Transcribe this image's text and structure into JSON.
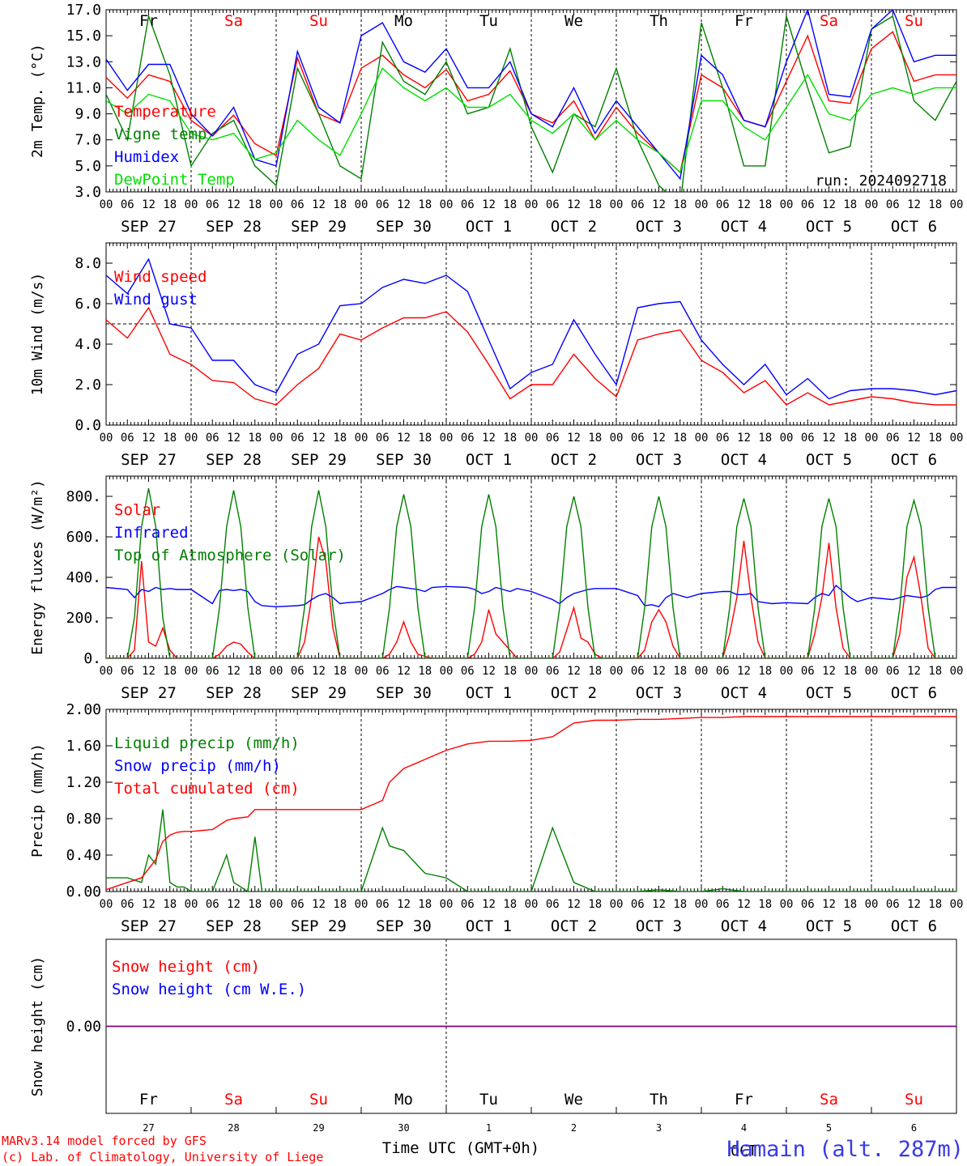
{
  "colors": {
    "red": "#ff0000",
    "blue": "#0000ff",
    "green": "#008000",
    "light_green": "#00e000",
    "purple": "#800080",
    "black": "#000000",
    "station_blue": "#3a3ae6"
  },
  "x_axis": {
    "hour_ticks": [
      "00",
      "06",
      "12",
      "18"
    ],
    "final_hour": "00",
    "dates": [
      "SEP 27",
      "SEP 28",
      "SEP 29",
      "SEP 30",
      "OCT  1",
      "OCT  2",
      "OCT  3",
      "OCT  4",
      "OCT  5",
      "OCT  6"
    ],
    "weekdays": [
      "Fr",
      "Sa",
      "Su",
      "Mo",
      "Tu",
      "We",
      "Th",
      "Fr",
      "Sa",
      "Su"
    ],
    "weekend_flags": [
      false,
      true,
      true,
      false,
      false,
      false,
      false,
      false,
      true,
      true
    ],
    "day_numbers": [
      "27",
      "28",
      "29",
      "30",
      "1",
      "2",
      "3",
      "4",
      "5",
      "6"
    ],
    "month_label": "OCT",
    "title": "Time UTC (GMT+0h)"
  },
  "footer": {
    "model_line": "MARv3.14 model forced by GFS",
    "credit_line": "(c) Lab. of Climatology, University of Liege",
    "station": "Hamain (alt. 287m)"
  },
  "chart_data": [
    {
      "id": "temperature",
      "type": "line",
      "ylabel": "2m Temp. (°C)",
      "ylim": [
        3.0,
        17.0
      ],
      "yticks": [
        "3.0",
        "5.0",
        "7.0",
        "9.0",
        "11.0",
        "13.0",
        "15.0",
        "17.0"
      ],
      "ytick_values": [
        3,
        5,
        7,
        9,
        11,
        13,
        15,
        17
      ],
      "annotation": "run: 2024092718",
      "show_weekdays": true,
      "x_hours": [
        0,
        6,
        12,
        18,
        24,
        30,
        36,
        42,
        48,
        54,
        60,
        66,
        72,
        78,
        84,
        90,
        96,
        102,
        108,
        114,
        120,
        126,
        132,
        138,
        144,
        150,
        156,
        162,
        168,
        174,
        180,
        186,
        192,
        198,
        204,
        210,
        216,
        222,
        228,
        234,
        240
      ],
      "series": [
        {
          "name": "Temperature",
          "color": "#ff0000",
          "values": [
            11.8,
            10.2,
            12.0,
            11.5,
            8.5,
            7.3,
            8.9,
            6.7,
            5.8,
            13.3,
            9.0,
            8.3,
            12.5,
            13.5,
            12.0,
            11.0,
            12.4,
            10.0,
            10.5,
            12.3,
            9.0,
            8.3,
            10.0,
            7.0,
            9.5,
            7.5,
            6.0,
            4.5,
            12.0,
            11.0,
            8.5,
            8.0,
            11.5,
            15.0,
            10.0,
            9.8,
            14.0,
            15.3,
            11.5,
            12.0,
            12.0
          ]
        },
        {
          "name": "Vigne temp",
          "color": "#008000",
          "values": [
            10.5,
            7.0,
            16.5,
            12.0,
            5.0,
            7.5,
            8.5,
            5.0,
            3.5,
            12.5,
            9.0,
            5.0,
            4.0,
            14.5,
            11.5,
            10.5,
            13.0,
            9.0,
            9.5,
            14.0,
            8.0,
            4.5,
            9.0,
            8.0,
            12.5,
            7.0,
            3.5,
            2.0,
            16.0,
            11.0,
            5.0,
            5.0,
            16.5,
            11.0,
            6.0,
            6.5,
            15.5,
            16.5,
            10.0,
            8.5,
            11.5
          ]
        },
        {
          "name": "Humidex",
          "color": "#0000ff",
          "values": [
            13.2,
            10.8,
            12.8,
            12.8,
            9.0,
            7.3,
            9.5,
            5.5,
            5.0,
            13.8,
            9.5,
            8.3,
            15.0,
            16.0,
            13.0,
            12.2,
            14.0,
            11.0,
            11.0,
            13.0,
            9.0,
            8.0,
            11.0,
            7.5,
            10.0,
            8.0,
            6.0,
            4.0,
            13.5,
            12.0,
            8.5,
            8.0,
            13.0,
            17.0,
            10.5,
            10.3,
            15.5,
            17.0,
            13.0,
            13.5,
            13.5
          ]
        },
        {
          "name": "DewPoint Temp",
          "color": "#00e000",
          "values": [
            10.0,
            9.0,
            10.5,
            10.0,
            7.5,
            7.0,
            7.5,
            5.5,
            6.0,
            8.5,
            7.0,
            5.8,
            9.0,
            12.5,
            11.0,
            10.0,
            11.0,
            9.5,
            9.5,
            10.5,
            8.5,
            7.5,
            9.0,
            7.0,
            8.5,
            7.0,
            6.0,
            4.5,
            10.0,
            10.0,
            8.0,
            7.0,
            9.5,
            12.0,
            9.0,
            8.5,
            10.5,
            11.0,
            10.5,
            11.0,
            11.0
          ]
        }
      ]
    },
    {
      "id": "wind",
      "type": "line",
      "ylabel": "10m Wind (m/s)",
      "ylim": [
        0.0,
        9.0
      ],
      "yticks": [
        "0.0",
        "2.0",
        "4.0",
        "6.0",
        "8.0"
      ],
      "ytick_values": [
        0,
        2,
        4,
        6,
        8
      ],
      "reference_line": 5.0,
      "show_weekdays": false,
      "x_hours": [
        0,
        6,
        12,
        18,
        24,
        30,
        36,
        42,
        48,
        54,
        60,
        66,
        72,
        78,
        84,
        90,
        96,
        102,
        108,
        114,
        120,
        126,
        132,
        138,
        144,
        150,
        156,
        162,
        168,
        174,
        180,
        186,
        192,
        198,
        204,
        210,
        216,
        222,
        228,
        234,
        240
      ],
      "series": [
        {
          "name": "Wind speed",
          "color": "#ff0000",
          "values": [
            5.2,
            4.3,
            5.8,
            3.5,
            3.0,
            2.2,
            2.1,
            1.3,
            1.0,
            2.0,
            2.8,
            4.5,
            4.2,
            4.8,
            5.3,
            5.3,
            5.6,
            4.6,
            3.0,
            1.3,
            2.0,
            2.0,
            3.5,
            2.3,
            1.4,
            4.2,
            4.5,
            4.7,
            3.2,
            2.6,
            1.6,
            2.2,
            1.0,
            1.6,
            1.0,
            1.2,
            1.4,
            1.3,
            1.1,
            1.0,
            1.0
          ]
        },
        {
          "name": "Wind gust",
          "color": "#0000ff",
          "values": [
            7.4,
            6.5,
            8.2,
            5.0,
            4.8,
            3.2,
            3.2,
            2.0,
            1.6,
            3.5,
            4.0,
            5.9,
            6.0,
            6.8,
            7.2,
            7.0,
            7.4,
            6.6,
            4.2,
            1.8,
            2.6,
            3.0,
            5.2,
            3.5,
            2.0,
            5.8,
            6.0,
            6.1,
            4.2,
            3.0,
            2.0,
            3.0,
            1.5,
            2.3,
            1.3,
            1.7,
            1.8,
            1.8,
            1.7,
            1.5,
            1.7
          ]
        }
      ]
    },
    {
      "id": "energy",
      "type": "line",
      "ylabel": "Energy fluxes (W/m²)",
      "ylim": [
        0,
        900
      ],
      "yticks": [
        "0.",
        "200.",
        "400.",
        "600.",
        "800."
      ],
      "ytick_values": [
        0,
        200,
        400,
        600,
        800
      ],
      "show_weekdays": false,
      "x_hours": [
        0,
        6,
        8,
        10,
        12,
        14,
        16,
        18,
        20,
        24,
        30,
        32,
        34,
        36,
        38,
        40,
        42,
        44,
        48,
        54,
        56,
        58,
        60,
        62,
        64,
        66,
        68,
        72,
        78,
        80,
        82,
        84,
        86,
        88,
        90,
        92,
        96,
        102,
        104,
        106,
        108,
        110,
        112,
        114,
        116,
        120,
        126,
        128,
        130,
        132,
        134,
        136,
        138,
        140,
        144,
        150,
        152,
        154,
        156,
        158,
        160,
        162,
        164,
        168,
        174,
        176,
        178,
        180,
        182,
        184,
        186,
        188,
        192,
        198,
        200,
        202,
        204,
        206,
        208,
        210,
        212,
        216,
        222,
        224,
        226,
        228,
        230,
        232,
        234,
        236,
        240
      ],
      "series": [
        {
          "name": "Solar",
          "color": "#ff0000",
          "values": [
            0,
            0,
            40,
            480,
            80,
            60,
            150,
            40,
            0,
            0,
            0,
            20,
            60,
            80,
            70,
            30,
            0,
            0,
            0,
            0,
            80,
            300,
            600,
            480,
            150,
            0,
            0,
            0,
            0,
            20,
            80,
            180,
            80,
            20,
            10,
            0,
            0,
            0,
            20,
            80,
            240,
            120,
            80,
            40,
            0,
            0,
            0,
            30,
            140,
            250,
            100,
            80,
            20,
            0,
            0,
            0,
            40,
            180,
            240,
            180,
            60,
            0,
            0,
            0,
            0,
            120,
            300,
            580,
            300,
            80,
            0,
            0,
            0,
            0,
            120,
            300,
            570,
            250,
            50,
            0,
            0,
            0,
            0,
            120,
            400,
            500,
            300,
            50,
            0,
            0,
            0
          ]
        },
        {
          "name": "Infrared",
          "color": "#0000ff",
          "values": [
            350,
            340,
            300,
            340,
            330,
            350,
            340,
            345,
            340,
            340,
            270,
            335,
            340,
            335,
            340,
            330,
            280,
            260,
            255,
            260,
            265,
            290,
            310,
            320,
            300,
            270,
            275,
            280,
            320,
            340,
            355,
            350,
            345,
            340,
            330,
            350,
            355,
            350,
            340,
            320,
            330,
            350,
            340,
            330,
            345,
            330,
            290,
            270,
            300,
            320,
            330,
            340,
            345,
            345,
            345,
            310,
            260,
            265,
            255,
            300,
            320,
            310,
            300,
            320,
            330,
            330,
            315,
            315,
            320,
            280,
            275,
            270,
            275,
            270,
            300,
            320,
            310,
            360,
            330,
            300,
            280,
            300,
            290,
            300,
            310,
            305,
            300,
            310,
            340,
            350,
            350
          ]
        },
        {
          "name": "Top of Atmosphere (Solar)",
          "color": "#008000",
          "values": [
            0,
            0,
            200,
            650,
            840,
            650,
            200,
            0,
            0,
            0,
            0,
            250,
            650,
            830,
            650,
            250,
            0,
            0,
            0,
            0,
            250,
            650,
            830,
            650,
            250,
            0,
            0,
            0,
            0,
            250,
            650,
            810,
            650,
            250,
            0,
            0,
            0,
            0,
            250,
            650,
            810,
            650,
            250,
            0,
            0,
            0,
            0,
            250,
            650,
            800,
            650,
            250,
            0,
            0,
            0,
            0,
            250,
            650,
            800,
            650,
            250,
            0,
            0,
            0,
            0,
            250,
            650,
            790,
            650,
            250,
            0,
            0,
            0,
            0,
            250,
            650,
            790,
            650,
            250,
            0,
            0,
            0,
            0,
            250,
            650,
            780,
            650,
            250,
            0,
            0,
            0
          ]
        }
      ]
    },
    {
      "id": "precip",
      "type": "line",
      "ylabel": "Precip (mm/h)",
      "ylim": [
        0.0,
        2.0
      ],
      "yticks": [
        "0.00",
        "0.40",
        "0.80",
        "1.20",
        "1.60",
        "2.00"
      ],
      "ytick_values": [
        0,
        0.4,
        0.8,
        1.2,
        1.6,
        2.0
      ],
      "show_weekdays": false,
      "x_hours": [
        0,
        6,
        10,
        12,
        14,
        16,
        18,
        20,
        22,
        24,
        30,
        34,
        36,
        40,
        42,
        44,
        46,
        48,
        54,
        60,
        66,
        72,
        78,
        80,
        84,
        90,
        96,
        102,
        108,
        114,
        120,
        126,
        132,
        138,
        144,
        150,
        156,
        162,
        168,
        174,
        180,
        186,
        192,
        198,
        204,
        210,
        216,
        222,
        228,
        234,
        240
      ],
      "series": [
        {
          "name": "Liquid precip (mm/h)",
          "color": "#008000",
          "values": [
            0.15,
            0.15,
            0.1,
            0.4,
            0.3,
            0.9,
            0.1,
            0.05,
            0.05,
            0.0,
            0.0,
            0.4,
            0.1,
            0.0,
            0.6,
            0.0,
            0.0,
            0.0,
            0.0,
            0.0,
            0.0,
            0.0,
            0.7,
            0.5,
            0.45,
            0.2,
            0.15,
            0.0,
            0.0,
            0.0,
            0.0,
            0.7,
            0.1,
            0.0,
            0.0,
            0.0,
            0.02,
            0.0,
            0.0,
            0.03,
            0.0,
            0.0,
            0.0,
            0.0,
            0.0,
            0.0,
            0.0,
            0.0,
            0.0,
            0.0,
            0.0
          ]
        },
        {
          "name": "Total cumulated (cm)",
          "color": "#ff0000",
          "values": [
            0.02,
            0.1,
            0.15,
            0.25,
            0.35,
            0.55,
            0.62,
            0.65,
            0.66,
            0.66,
            0.68,
            0.78,
            0.8,
            0.82,
            0.9,
            0.9,
            0.9,
            0.9,
            0.9,
            0.9,
            0.9,
            0.9,
            1.0,
            1.2,
            1.35,
            1.45,
            1.55,
            1.62,
            1.65,
            1.65,
            1.66,
            1.7,
            1.85,
            1.88,
            1.88,
            1.89,
            1.89,
            1.9,
            1.91,
            1.91,
            1.92,
            1.92,
            1.92,
            1.92,
            1.92,
            1.92,
            1.92,
            1.92,
            1.92,
            1.92,
            1.92
          ]
        },
        {
          "name": "Snow precip (mm/h)",
          "color": "#0000ff",
          "values": []
        }
      ]
    },
    {
      "id": "snow",
      "type": "line",
      "ylabel": "Snow height (cm)",
      "ylim": [
        -1,
        1
      ],
      "yticks": [
        "0.00"
      ],
      "ytick_values": [
        0
      ],
      "show_weekdays": true,
      "x_hours": [
        0,
        240
      ],
      "series": [
        {
          "name": "Snow height (cm)",
          "color": "#ff0000",
          "values": [
            0,
            0
          ]
        },
        {
          "name": "Snow height (cm W.E.)",
          "color": "#0000ff",
          "values": [
            0,
            0
          ]
        }
      ]
    }
  ]
}
